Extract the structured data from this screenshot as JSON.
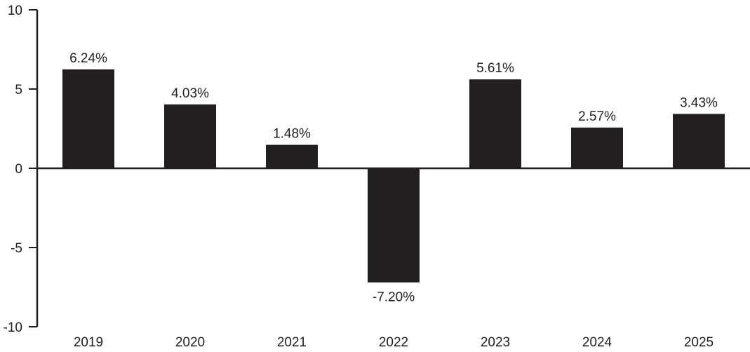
{
  "chart_data": {
    "type": "bar",
    "categories": [
      "2019",
      "2020",
      "2021",
      "2022",
      "2023",
      "2024",
      "2025"
    ],
    "values": [
      6.24,
      4.03,
      1.48,
      -7.2,
      5.61,
      2.57,
      3.43
    ],
    "value_labels": [
      "6.24%",
      "4.03%",
      "1.48%",
      "-7.20%",
      "5.61%",
      "2.57%",
      "3.43%"
    ],
    "title": "",
    "xlabel": "",
    "ylabel": "",
    "ylim": [
      -10,
      10
    ],
    "yticks": [
      10,
      5,
      0,
      -5,
      -10
    ],
    "ytick_labels": [
      "10",
      "5",
      "0",
      "-5",
      "-10"
    ],
    "grid": false,
    "legend": "none",
    "colors": {
      "bar": "#231f20",
      "axis": "#231f20",
      "text": "#231f20"
    }
  }
}
